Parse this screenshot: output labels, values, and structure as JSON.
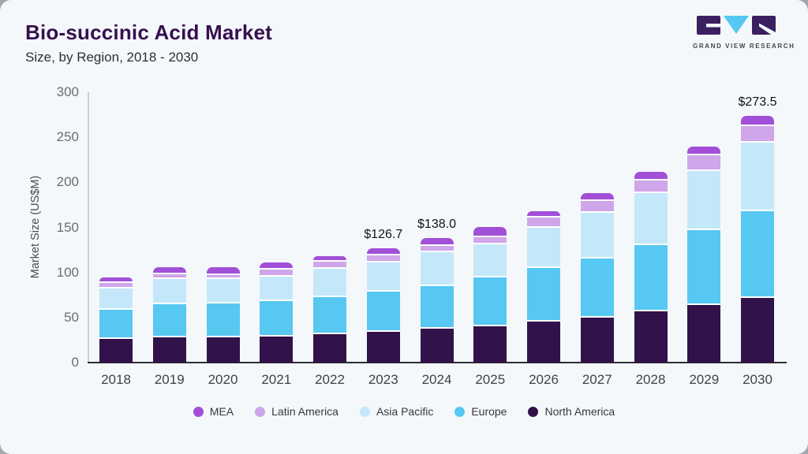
{
  "page": {
    "title": "Bio-succinic Acid Market",
    "subtitle": "Size, by Region, 2018 - 2030"
  },
  "logo": {
    "text": "GRAND VIEW RESEARCH",
    "block_color": "#3a2060",
    "triangle_color": "#56c7f2"
  },
  "chart_data": {
    "type": "bar",
    "stacked": true,
    "title": "Bio-succinic Acid Market",
    "subtitle": "Size, by Region, 2018 - 2030",
    "xlabel": "",
    "ylabel": "Market Size (US$M)",
    "ylim": [
      0,
      300
    ],
    "yticks": [
      0,
      50,
      100,
      150,
      200,
      250,
      300
    ],
    "grid": false,
    "legend_position": "bottom",
    "categories": [
      "2018",
      "2019",
      "2020",
      "2021",
      "2022",
      "2023",
      "2024",
      "2025",
      "2026",
      "2027",
      "2028",
      "2029",
      "2030"
    ],
    "series": [
      {
        "name": "North America",
        "color": "#32124a",
        "values": [
          27.9,
          30.0,
          29.4,
          30.8,
          32.9,
          35.5,
          39.6,
          42.2,
          47.4,
          51.8,
          58.5,
          65.5,
          73.6
        ]
      },
      {
        "name": "Europe",
        "color": "#57c8f2",
        "values": [
          32.6,
          36.4,
          37.6,
          39.3,
          41.9,
          45.1,
          47.1,
          53.9,
          58.9,
          65.2,
          74.0,
          83.3,
          96.1
        ]
      },
      {
        "name": "Asia Pacific",
        "color": "#c4e8f9",
        "values": [
          23.9,
          27.7,
          27.1,
          26.9,
          30.9,
          32.3,
          37.1,
          37.3,
          44.8,
          50.7,
          57.0,
          65.2,
          75.7
        ]
      },
      {
        "name": "Latin America",
        "color": "#cfa6e9",
        "values": [
          5.3,
          5.7,
          5.2,
          7.8,
          8.1,
          7.6,
          7.2,
          7.8,
          11.4,
          13.7,
          14.6,
          17.4,
          18.4
        ]
      },
      {
        "name": "MEA",
        "color": "#a24fd8",
        "values": [
          4.9,
          5.9,
          6.4,
          6.1,
          4.7,
          6.2,
          7.0,
          9.6,
          5.7,
          6.6,
          7.5,
          7.9,
          9.7
        ]
      }
    ],
    "legend": [
      "MEA",
      "Latin America",
      "Asia Pacific",
      "Europe",
      "North America"
    ],
    "annotations": [
      {
        "category": "2023",
        "label": "$126.7"
      },
      {
        "category": "2024",
        "label": "$138.0"
      },
      {
        "category": "2030",
        "label": "$273.5"
      }
    ]
  }
}
